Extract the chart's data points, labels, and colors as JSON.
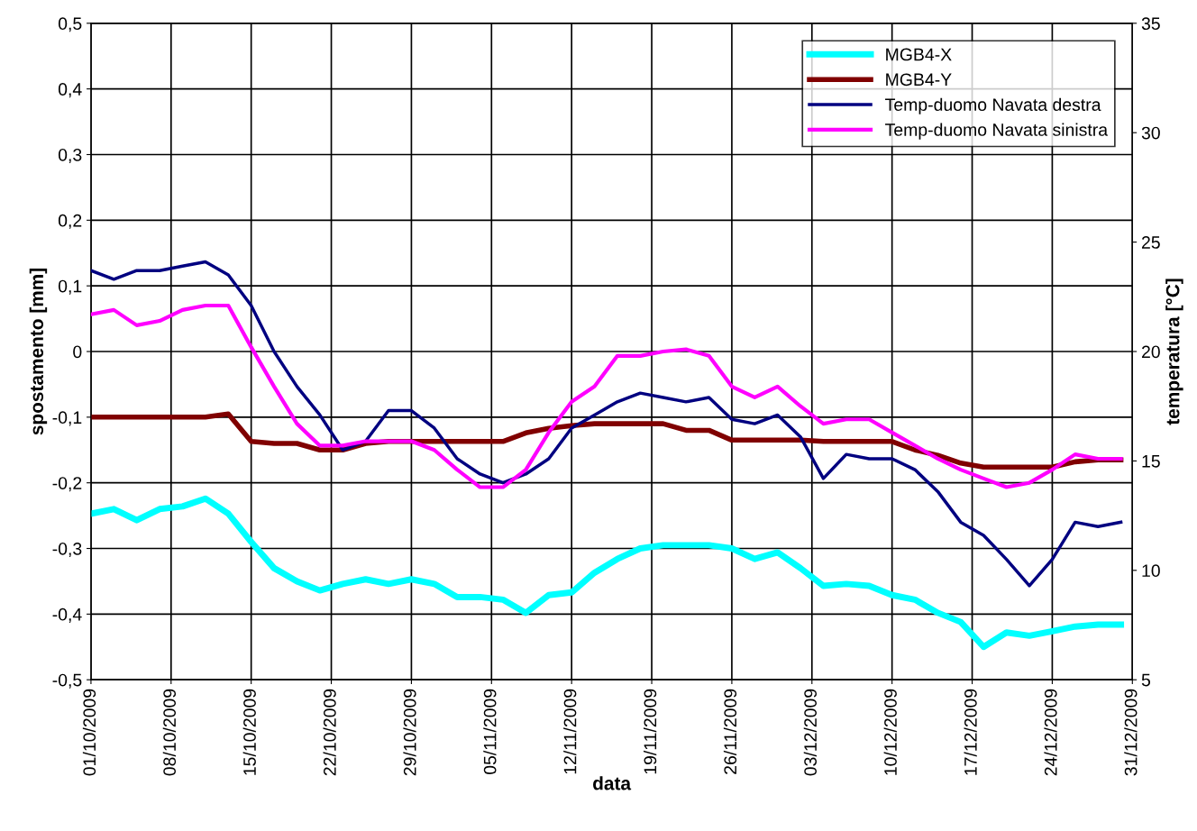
{
  "chart_data": {
    "type": "line",
    "xlabel": "data",
    "ylabel": "spostamento [mm]",
    "y2label": "temperatura [°C]",
    "x": [
      "2009-10-01",
      "2009-10-03",
      "2009-10-05",
      "2009-10-07",
      "2009-10-09",
      "2009-10-11",
      "2009-10-13",
      "2009-10-15",
      "2009-10-17",
      "2009-10-19",
      "2009-10-21",
      "2009-10-23",
      "2009-10-25",
      "2009-10-27",
      "2009-10-29",
      "2009-10-31",
      "2009-11-02",
      "2009-11-04",
      "2009-11-06",
      "2009-11-08",
      "2009-11-10",
      "2009-11-12",
      "2009-11-14",
      "2009-11-16",
      "2009-11-18",
      "2009-11-20",
      "2009-11-22",
      "2009-11-24",
      "2009-11-26",
      "2009-11-28",
      "2009-11-30",
      "2009-12-02",
      "2009-12-04",
      "2009-12-06",
      "2009-12-08",
      "2009-12-10",
      "2009-12-12",
      "2009-12-14",
      "2009-12-16",
      "2009-12-18",
      "2009-12-20",
      "2009-12-22",
      "2009-12-24",
      "2009-12-26",
      "2009-12-28",
      "2009-12-30"
    ],
    "series": [
      {
        "name": "MGB4-X",
        "color": "#00ffff",
        "values": [
          -0.247,
          -0.24,
          -0.257,
          -0.24,
          -0.236,
          -0.224,
          -0.247,
          -0.29,
          -0.33,
          -0.35,
          -0.364,
          -0.354,
          -0.347,
          -0.354,
          -0.347,
          -0.354,
          -0.374,
          -0.374,
          -0.378,
          -0.398,
          -0.371,
          -0.367,
          -0.337,
          -0.316,
          -0.3,
          -0.295,
          -0.295,
          -0.295,
          -0.3,
          -0.316,
          -0.306,
          -0.33,
          -0.357,
          -0.354,
          -0.357,
          -0.371,
          -0.378,
          -0.398,
          -0.412,
          -0.45,
          -0.428,
          -0.433,
          -0.426,
          -0.419,
          -0.416,
          -0.416
        ]
      },
      {
        "name": "MGB4-Y",
        "color": "#800000",
        "values": [
          -0.1,
          -0.1,
          -0.1,
          -0.1,
          -0.1,
          -0.1,
          -0.095,
          -0.137,
          -0.14,
          -0.14,
          -0.15,
          -0.15,
          -0.14,
          -0.137,
          -0.137,
          -0.137,
          -0.137,
          -0.137,
          -0.137,
          -0.124,
          -0.117,
          -0.113,
          -0.11,
          -0.11,
          -0.11,
          -0.11,
          -0.12,
          -0.12,
          -0.135,
          -0.135,
          -0.135,
          -0.135,
          -0.137,
          -0.137,
          -0.137,
          -0.137,
          -0.15,
          -0.158,
          -0.17,
          -0.176,
          -0.176,
          -0.176,
          -0.176,
          -0.168,
          -0.165,
          -0.165
        ]
      },
      {
        "name": "Temp-duomo Navata destra",
        "color": "#000080",
        "axis": "y2",
        "values": [
          23.7,
          23.3,
          23.7,
          23.7,
          23.9,
          24.1,
          23.5,
          22.1,
          20.0,
          18.4,
          17.1,
          15.5,
          15.9,
          17.3,
          17.3,
          16.5,
          15.1,
          14.4,
          14.0,
          14.4,
          15.1,
          16.5,
          17.1,
          17.7,
          18.1,
          17.9,
          17.7,
          17.9,
          16.9,
          16.7,
          17.1,
          16.1,
          14.2,
          15.3,
          15.1,
          15.1,
          14.6,
          13.6,
          12.2,
          11.6,
          10.5,
          9.3,
          10.5,
          12.2,
          12.0,
          12.2
        ]
      },
      {
        "name": "Temp-duomo Navata sinistra",
        "color": "#ff00ff",
        "axis": "y2",
        "values": [
          21.7,
          21.9,
          21.2,
          21.4,
          21.9,
          22.1,
          22.1,
          20.2,
          18.4,
          16.7,
          15.7,
          15.7,
          15.9,
          15.9,
          15.9,
          15.5,
          14.6,
          13.8,
          13.8,
          14.6,
          16.3,
          17.7,
          18.4,
          19.8,
          19.8,
          20.0,
          20.1,
          19.8,
          18.4,
          17.9,
          18.4,
          17.5,
          16.7,
          16.9,
          16.9,
          16.3,
          15.7,
          15.1,
          14.6,
          14.2,
          13.8,
          14.0,
          14.6,
          15.3,
          15.1,
          15.1
        ]
      }
    ],
    "xlim": [
      "2009-10-01",
      "2009-12-31"
    ],
    "xticks": [
      {
        "value": "2009-10-01",
        "label": "01/10/2009"
      },
      {
        "value": "2009-10-08",
        "label": "08/10/2009"
      },
      {
        "value": "2009-10-15",
        "label": "15/10/2009"
      },
      {
        "value": "2009-10-22",
        "label": "22/10/2009"
      },
      {
        "value": "2009-10-29",
        "label": "29/10/2009"
      },
      {
        "value": "2009-11-05",
        "label": "05/11/2009"
      },
      {
        "value": "2009-11-12",
        "label": "12/11/2009"
      },
      {
        "value": "2009-11-19",
        "label": "19/11/2009"
      },
      {
        "value": "2009-11-26",
        "label": "26/11/2009"
      },
      {
        "value": "2009-12-03",
        "label": "03/12/2009"
      },
      {
        "value": "2009-12-10",
        "label": "10/12/2009"
      },
      {
        "value": "2009-12-17",
        "label": "17/12/2009"
      },
      {
        "value": "2009-12-24",
        "label": "24/12/2009"
      },
      {
        "value": "2009-12-31",
        "label": "31/12/2009"
      }
    ],
    "ylim": [
      -0.5,
      0.5
    ],
    "yticks": [
      {
        "value": -0.5,
        "label": "-0,5"
      },
      {
        "value": -0.4,
        "label": "-0,4"
      },
      {
        "value": -0.3,
        "label": "-0,3"
      },
      {
        "value": -0.2,
        "label": "-0,2"
      },
      {
        "value": -0.1,
        "label": "-0,1"
      },
      0,
      {
        "value": 0.1,
        "label": "0,1"
      },
      {
        "value": 0.2,
        "label": "0,2"
      },
      {
        "value": 0.3,
        "label": "0,3"
      },
      {
        "value": 0.4,
        "label": "0,4"
      },
      {
        "value": 0.5,
        "label": "0,5"
      }
    ],
    "y2lim": [
      5,
      35
    ],
    "y2ticks": [
      5,
      10,
      15,
      20,
      25,
      30,
      35
    ],
    "grid": true,
    "legend": "top right",
    "marker": "none",
    "line_style": "solid"
  }
}
